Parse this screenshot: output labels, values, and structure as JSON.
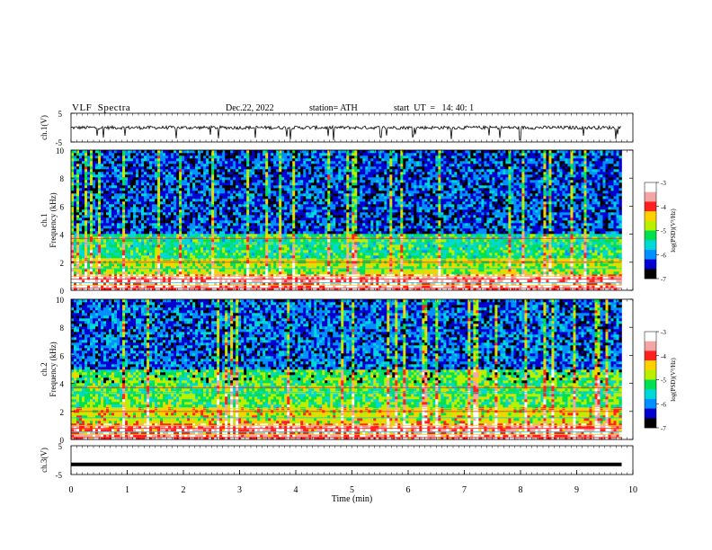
{
  "header": {
    "title": "VLF  Spectra",
    "date": "Dec.22, 2022",
    "station": "station= ATH",
    "start": "start  UT  =   14: 40: 1"
  },
  "colorbar": {
    "label": "log(PSD)(V²/Hz)",
    "ticks": [
      "-3",
      "-4",
      "-5",
      "-6",
      "-7"
    ],
    "colors": [
      "#ffffff",
      "#f4a6a6",
      "#ff2020",
      "#ffd000",
      "#b8f000",
      "#00e050",
      "#00d8d8",
      "#0090ff",
      "#0000d0",
      "#000000"
    ]
  },
  "chart_data": [
    {
      "type": "line",
      "name": "ch.1 waveform",
      "ylabel": "ch.1(V)",
      "ylim": [
        -5,
        5
      ],
      "yticks": [
        "5",
        "-5"
      ],
      "xlim": [
        0,
        10
      ],
      "approx_baseline_v": 0.0,
      "approx_noise_amplitude_v": 1.0,
      "spike_min_v": -4.5
    },
    {
      "type": "heatmap",
      "name": "ch.1 spectrogram",
      "ylabel": "ch.1\nFrequency  (kHz)",
      "ylim": [
        0,
        10
      ],
      "yticks": [
        "0",
        "2",
        "4",
        "6",
        "8",
        "10"
      ],
      "xlim": [
        0,
        9.8
      ],
      "zlim_log_psd": [
        -7,
        -3
      ],
      "description_bands_khz": [
        {
          "from": 0,
          "to": 1.2,
          "level": -3.6
        },
        {
          "from": 1.2,
          "to": 2.4,
          "level": -4.8
        },
        {
          "from": 2.4,
          "to": 4,
          "level": -5.3
        },
        {
          "from": 4,
          "to": 10,
          "level": -6.2
        }
      ]
    },
    {
      "type": "heatmap",
      "name": "ch.2 spectrogram",
      "ylabel": "ch.2\nFrequency  (kHz)",
      "ylim": [
        0,
        10
      ],
      "yticks": [
        "0",
        "2",
        "4",
        "6",
        "8",
        "10"
      ],
      "xlim": [
        0,
        9.8
      ],
      "zlim_log_psd": [
        -7,
        -3
      ],
      "description_bands_khz": [
        {
          "from": 0,
          "to": 1.2,
          "level": -3.7
        },
        {
          "from": 1.2,
          "to": 2.4,
          "level": -4.6
        },
        {
          "from": 2.4,
          "to": 5,
          "level": -5.1
        },
        {
          "from": 5,
          "to": 10,
          "level": -6.1
        }
      ]
    },
    {
      "type": "line",
      "name": "ch.3 waveform",
      "ylabel": "ch.3(V)",
      "ylim": [
        -5,
        5
      ],
      "yticks": [
        "5",
        "-5"
      ],
      "xlim": [
        0,
        10
      ],
      "approx_value_v": -1.5,
      "xlabel": "Time  (min)",
      "xticks": [
        "0",
        "1",
        "2",
        "3",
        "4",
        "5",
        "6",
        "7",
        "8",
        "9",
        "10"
      ]
    }
  ]
}
